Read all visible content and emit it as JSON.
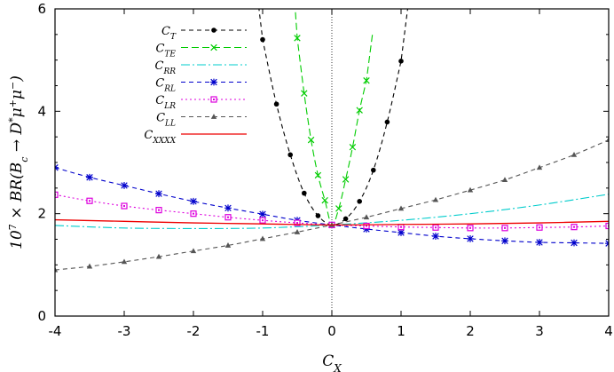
{
  "chart_data": {
    "type": "line",
    "xlabel": "C_X",
    "ylabel": "10^7 × BR(B_c → D^* μ^+ μ^-)",
    "xlim": [
      -4,
      4
    ],
    "ylim": [
      0,
      6
    ],
    "xticks": [
      "-4",
      "-3",
      "-2",
      "-1",
      "0",
      "1",
      "2",
      "3",
      "4"
    ],
    "yticks": [
      "0",
      "2",
      "4",
      "6"
    ],
    "grid": false,
    "legend_position": "top-left",
    "vertical_reference_line": 0,
    "series": [
      {
        "name": "C_T",
        "subscript": "T",
        "color": "#000000",
        "marker": "circle",
        "dash": "5,4",
        "x": [
          -1,
          -0.8,
          -0.6,
          -0.4,
          -0.2,
          0,
          0.2,
          0.4,
          0.6,
          0.8,
          1
        ],
        "y": [
          5.4,
          4.14,
          3.15,
          2.4,
          1.96,
          1.78,
          1.9,
          2.24,
          2.85,
          3.79,
          4.98
        ]
      },
      {
        "name": "C_TE",
        "subscript": "TE",
        "color": "#00cc00",
        "marker": "x",
        "dash": "8,4",
        "x": [
          -0.5,
          -0.4,
          -0.3,
          -0.2,
          -0.1,
          0,
          0.1,
          0.2,
          0.3,
          0.4,
          0.5
        ],
        "y": [
          5.43,
          4.35,
          3.44,
          2.75,
          2.26,
          1.78,
          2.1,
          2.67,
          3.3,
          4.02,
          4.6
        ]
      },
      {
        "name": "C_RR",
        "subscript": "RR",
        "color": "#00cccc",
        "marker": "none",
        "dash": "10,3,2,3",
        "x": [
          -4,
          -3,
          -2,
          -1,
          0,
          1,
          2,
          3,
          4
        ],
        "y": [
          1.77,
          1.72,
          1.71,
          1.72,
          1.78,
          1.87,
          2.0,
          2.17,
          2.38
        ]
      },
      {
        "name": "C_RL",
        "subscript": "RL",
        "color": "#0000cc",
        "marker": "star",
        "dash": "5,4",
        "x": [
          -4,
          -3.5,
          -3,
          -2.5,
          -2,
          -1.5,
          -1,
          -0.5,
          0,
          0.5,
          1,
          1.5,
          2,
          2.5,
          3,
          3.5,
          4
        ],
        "y": [
          2.9,
          2.71,
          2.55,
          2.39,
          2.24,
          2.11,
          1.99,
          1.87,
          1.78,
          1.7,
          1.63,
          1.56,
          1.51,
          1.47,
          1.44,
          1.43,
          1.42
        ]
      },
      {
        "name": "C_LR",
        "subscript": "LR",
        "color": "#dd00dd",
        "marker": "square",
        "dash": "2,3",
        "x": [
          -4,
          -3.5,
          -3,
          -2.5,
          -2,
          -1.5,
          -1,
          -0.5,
          0,
          0.5,
          1,
          1.5,
          2,
          2.5,
          3,
          3.5,
          4
        ],
        "y": [
          2.37,
          2.25,
          2.15,
          2.07,
          2.0,
          1.93,
          1.87,
          1.82,
          1.78,
          1.76,
          1.74,
          1.73,
          1.72,
          1.72,
          1.73,
          1.74,
          1.76
        ]
      },
      {
        "name": "C_LL",
        "subscript": "LL",
        "color": "#555555",
        "marker": "triangle",
        "dash": "5,4",
        "x": [
          -4,
          -3.5,
          -3,
          -2.5,
          -2,
          -1.5,
          -1,
          -0.5,
          0,
          0.5,
          1,
          1.5,
          2,
          2.5,
          3,
          3.5,
          4
        ],
        "y": [
          0.9,
          0.97,
          1.06,
          1.16,
          1.27,
          1.38,
          1.51,
          1.64,
          1.78,
          1.93,
          2.1,
          2.27,
          2.46,
          2.66,
          2.9,
          3.15,
          3.44
        ]
      },
      {
        "name": "C_XXXX",
        "subscript": "XXXX",
        "color": "#ee0000",
        "marker": "none",
        "dash": "",
        "x": [
          -4,
          -3,
          -2,
          -1,
          0,
          1,
          2,
          3,
          4
        ],
        "y": [
          1.88,
          1.85,
          1.82,
          1.8,
          1.78,
          1.79,
          1.8,
          1.82,
          1.85
        ]
      }
    ]
  }
}
